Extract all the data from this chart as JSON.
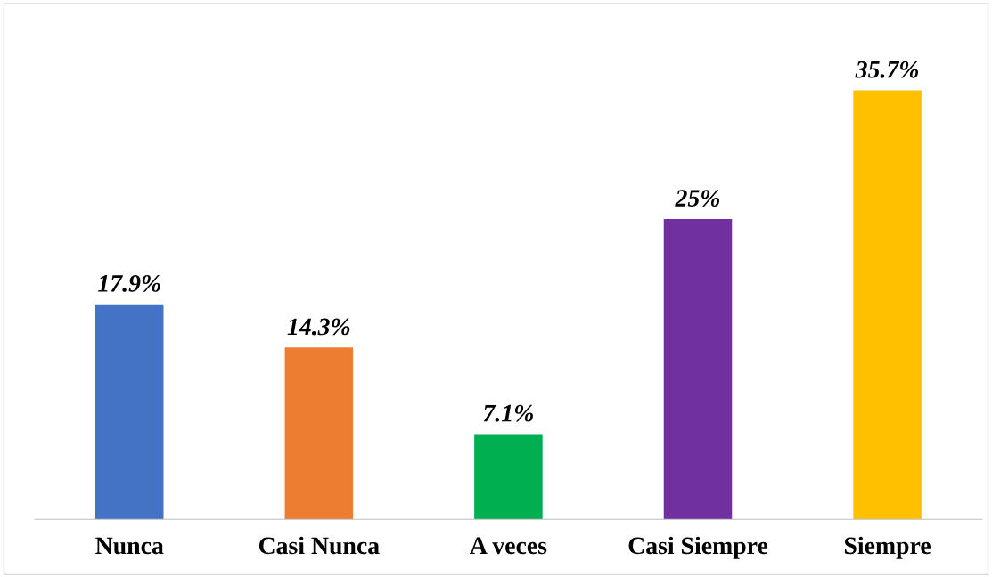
{
  "chart_data": {
    "type": "bar",
    "categories": [
      "Nunca",
      "Casi Nunca",
      "A veces",
      "Casi Siempre",
      "Siempre"
    ],
    "values": [
      17.9,
      14.3,
      7.1,
      25,
      35.7
    ],
    "colors": [
      "#4472c4",
      "#ed7d31",
      "#00b050",
      "#7030a0",
      "#ffc000"
    ],
    "value_labels": [
      "17.9%",
      "14.3%",
      "7.1%",
      "25%",
      "35.7%"
    ],
    "grid": false,
    "legend": false
  }
}
